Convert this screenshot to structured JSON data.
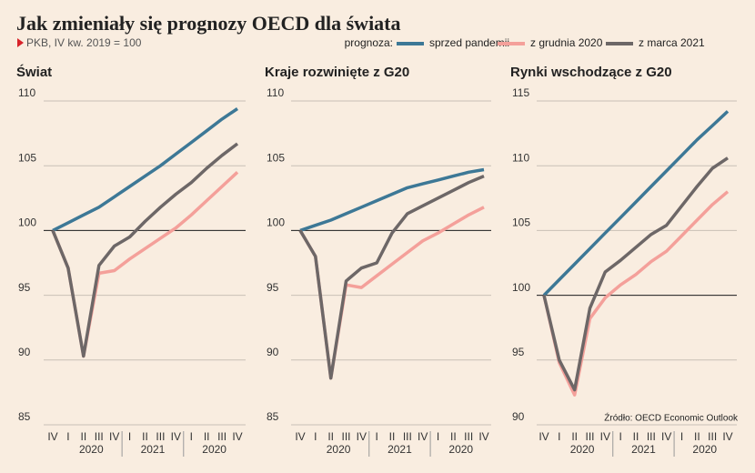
{
  "title": "Jak zmieniały się prognozy OECD dla świata",
  "subtitle": "PKB, IV kw. 2019 = 100",
  "source": "Źródło: OECD Economic Outlook",
  "legend": {
    "label": "prognoza:",
    "series": [
      {
        "name": "sprzed pandemii",
        "color": "#3d7896"
      },
      {
        "name": "z grudnia 2020",
        "color": "#f4a09a"
      },
      {
        "name": "z marca 2021",
        "color": "#6d6767"
      }
    ]
  },
  "chart_data": [
    {
      "type": "line",
      "title": "Świat",
      "categories": [
        "IV",
        "I",
        "II",
        "III",
        "IV",
        "I",
        "II",
        "III",
        "IV",
        "I",
        "II",
        "III",
        "IV"
      ],
      "year_groups": [
        "2020",
        "2021",
        "2020"
      ],
      "ylim": [
        85,
        110
      ],
      "yticks": [
        85,
        90,
        95,
        100,
        105,
        110
      ],
      "reference_line": 100,
      "series": [
        {
          "values": [
            100,
            100.6,
            101.2,
            101.8,
            102.6,
            103.4,
            104.2,
            105.0,
            105.9,
            106.8,
            107.7,
            108.6,
            109.4
          ]
        },
        {
          "values": [
            100,
            97.1,
            90.3,
            96.7,
            96.9,
            97.8,
            98.6,
            99.4,
            100.2,
            101.2,
            102.3,
            103.4,
            104.5
          ]
        },
        {
          "values": [
            100,
            97.1,
            90.3,
            97.3,
            98.8,
            99.5,
            100.7,
            101.8,
            102.8,
            103.7,
            104.8,
            105.8,
            106.7
          ]
        }
      ]
    },
    {
      "type": "line",
      "title": "Kraje rozwinięte z G20",
      "categories": [
        "IV",
        "I",
        "II",
        "III",
        "IV",
        "I",
        "II",
        "III",
        "IV",
        "I",
        "II",
        "III",
        "IV"
      ],
      "year_groups": [
        "2020",
        "2021",
        "2020"
      ],
      "ylim": [
        85,
        110
      ],
      "yticks": [
        85,
        90,
        95,
        100,
        105,
        110
      ],
      "reference_line": 100,
      "series": [
        {
          "values": [
            100,
            100.4,
            100.8,
            101.3,
            101.8,
            102.3,
            102.8,
            103.3,
            103.6,
            103.9,
            104.2,
            104.5,
            104.7
          ]
        },
        {
          "values": [
            100,
            98.0,
            88.6,
            95.8,
            95.6,
            96.5,
            97.4,
            98.3,
            99.2,
            99.8,
            100.5,
            101.2,
            101.8
          ]
        },
        {
          "values": [
            100,
            98.0,
            88.6,
            96.1,
            97.1,
            97.5,
            99.8,
            101.3,
            101.9,
            102.5,
            103.1,
            103.7,
            104.2
          ]
        }
      ]
    },
    {
      "type": "line",
      "title": "Rynki wschodzące z G20",
      "categories": [
        "IV",
        "I",
        "II",
        "III",
        "IV",
        "I",
        "II",
        "III",
        "IV",
        "I",
        "II",
        "III",
        "IV"
      ],
      "year_groups": [
        "2020",
        "2021",
        "2020"
      ],
      "ylim": [
        90,
        115
      ],
      "yticks": [
        90,
        95,
        100,
        105,
        110,
        115
      ],
      "reference_line": 100,
      "series": [
        {
          "values": [
            100,
            101.2,
            102.4,
            103.6,
            104.8,
            106.0,
            107.2,
            108.4,
            109.6,
            110.8,
            112.0,
            113.1,
            114.2
          ]
        },
        {
          "values": [
            100,
            94.8,
            92.3,
            98.2,
            99.8,
            100.8,
            101.6,
            102.6,
            103.4,
            104.6,
            105.8,
            107.0,
            108.0
          ]
        },
        {
          "values": [
            100,
            95.0,
            92.7,
            99.0,
            101.8,
            102.7,
            103.7,
            104.7,
            105.4,
            106.9,
            108.4,
            109.8,
            110.6
          ]
        }
      ]
    }
  ]
}
